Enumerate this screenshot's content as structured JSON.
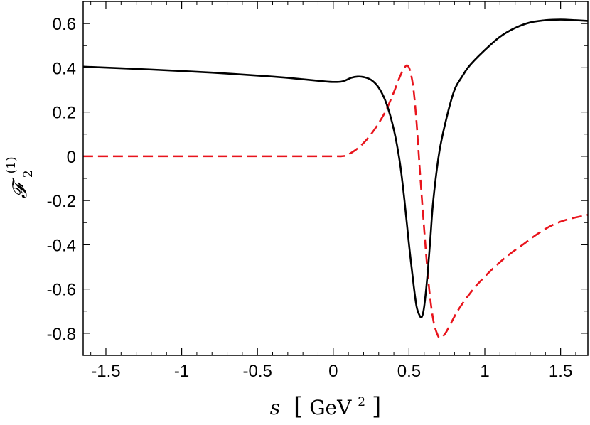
{
  "chart_data": {
    "type": "line",
    "xlabel": "s [GeV²]",
    "xlabel_parts": {
      "var": "s",
      "unit": "GeV",
      "exp": "2"
    },
    "ylabel": "𝓕₂⁽¹⁾",
    "ylabel_parts": {
      "base": "𝓕",
      "sub": "2",
      "sup": "(1)"
    },
    "xlim": [
      -1.65,
      1.68
    ],
    "ylim": [
      -0.9,
      0.7
    ],
    "x_ticks": [
      -1.5,
      -1,
      -0.5,
      0,
      0.5,
      1,
      1.5
    ],
    "x_tick_labels": [
      "-1.5",
      "-1",
      "-0.5",
      "0",
      "0.5",
      "1",
      "1.5"
    ],
    "y_ticks": [
      0.6,
      0.4,
      0.2,
      0,
      -0.2,
      -0.4,
      -0.6,
      -0.8
    ],
    "y_tick_labels": [
      "0.6",
      "0.4",
      "0.2",
      "0",
      "-0.2",
      "-0.4",
      "-0.6",
      "-0.8"
    ],
    "grid": false,
    "legend": "none",
    "series": [
      {
        "style": "solid",
        "color": "#000000",
        "x": [
          -1.65,
          -1.2,
          -0.8,
          -0.4,
          -0.2,
          -0.05,
          0,
          0.05,
          0.08,
          0.12,
          0.16,
          0.2,
          0.25,
          0.3,
          0.35,
          0.4,
          0.44,
          0.47,
          0.5,
          0.53,
          0.55,
          0.57,
          0.585,
          0.6,
          0.62,
          0.64,
          0.66,
          0.7,
          0.75,
          0.8,
          0.85,
          0.9,
          1.0,
          1.1,
          1.2,
          1.3,
          1.4,
          1.5,
          1.6,
          1.68
        ],
        "y": [
          0.405,
          0.392,
          0.378,
          0.36,
          0.348,
          0.338,
          0.336,
          0.337,
          0.343,
          0.355,
          0.36,
          0.358,
          0.345,
          0.31,
          0.24,
          0.12,
          -0.03,
          -0.2,
          -0.4,
          -0.58,
          -0.68,
          -0.72,
          -0.725,
          -0.68,
          -0.55,
          -0.38,
          -0.2,
          0.02,
          0.18,
          0.3,
          0.36,
          0.41,
          0.48,
          0.54,
          0.58,
          0.605,
          0.615,
          0.618,
          0.615,
          0.612
        ]
      },
      {
        "style": "dashed",
        "color": "#e8141c",
        "x": [
          -1.65,
          -1.0,
          -0.5,
          0,
          0.05,
          0.08,
          0.1,
          0.15,
          0.2,
          0.25,
          0.3,
          0.35,
          0.4,
          0.44,
          0.47,
          0.49,
          0.51,
          0.53,
          0.55,
          0.57,
          0.6,
          0.63,
          0.66,
          0.69,
          0.71,
          0.74,
          0.78,
          0.82,
          0.88,
          0.95,
          1.05,
          1.15,
          1.25,
          1.35,
          1.45,
          1.55,
          1.68
        ],
        "y": [
          0,
          0,
          0,
          0,
          0,
          0.002,
          0.008,
          0.03,
          0.06,
          0.1,
          0.15,
          0.21,
          0.29,
          0.36,
          0.4,
          0.41,
          0.38,
          0.3,
          0.15,
          -0.05,
          -0.33,
          -0.58,
          -0.74,
          -0.81,
          -0.82,
          -0.8,
          -0.75,
          -0.7,
          -0.64,
          -0.58,
          -0.51,
          -0.45,
          -0.4,
          -0.35,
          -0.31,
          -0.285,
          -0.265
        ]
      }
    ]
  }
}
